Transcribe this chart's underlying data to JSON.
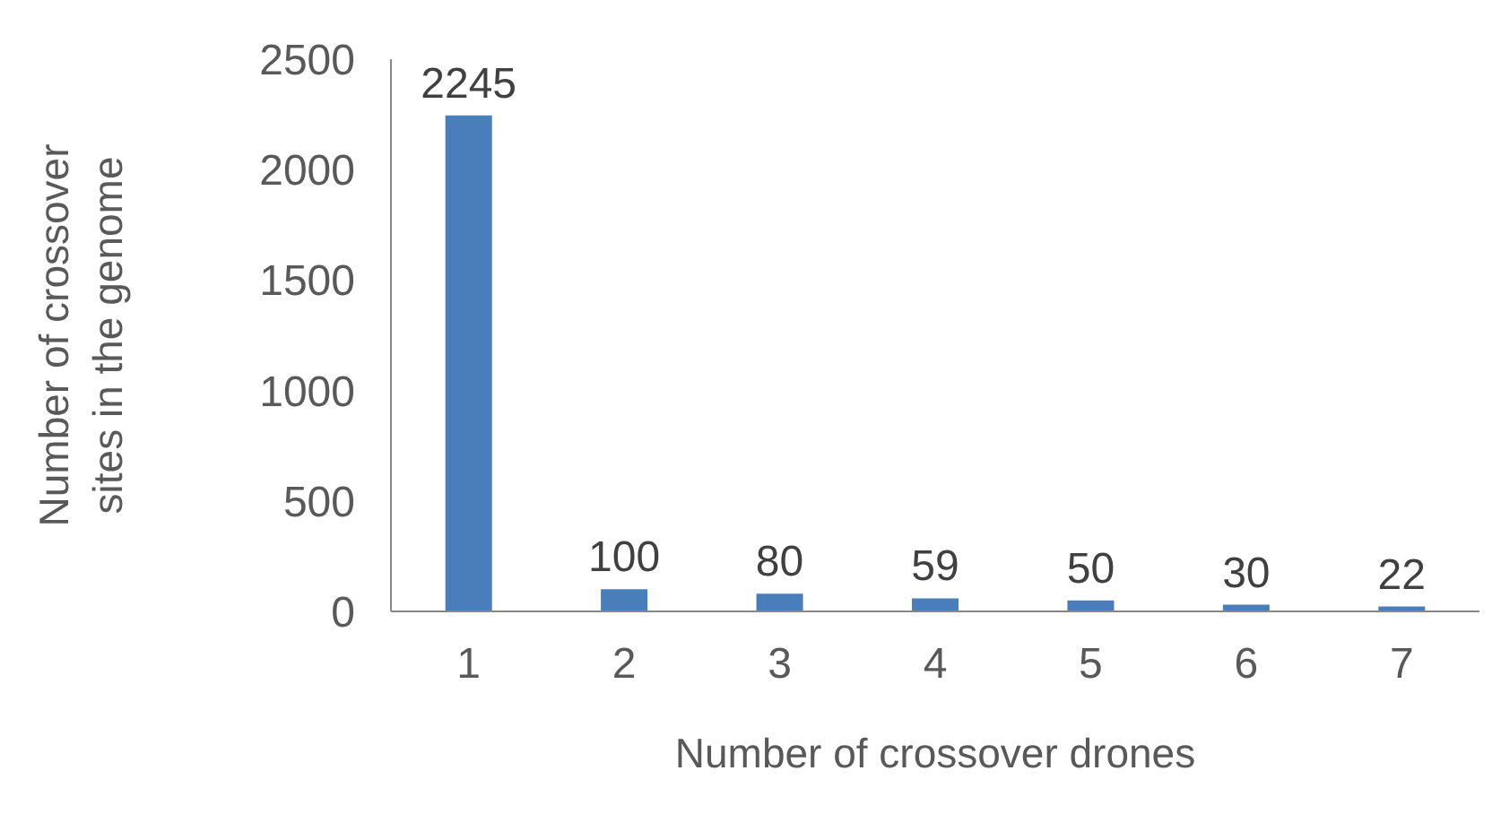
{
  "chart_data": {
    "type": "bar",
    "xlabel": "Number of crossover drones",
    "ylabel": "Number of crossover sites in the genome",
    "categories": [
      "1",
      "2",
      "3",
      "4",
      "5",
      "6",
      "7"
    ],
    "values": [
      2245,
      100,
      80,
      59,
      50,
      30,
      22
    ],
    "color": "#4a7ebb",
    "ylim": [
      0,
      2500
    ],
    "yticks": [
      0,
      500,
      1000,
      1500,
      2000,
      2500
    ],
    "data_labels": true,
    "grid": false,
    "legend": false
  }
}
